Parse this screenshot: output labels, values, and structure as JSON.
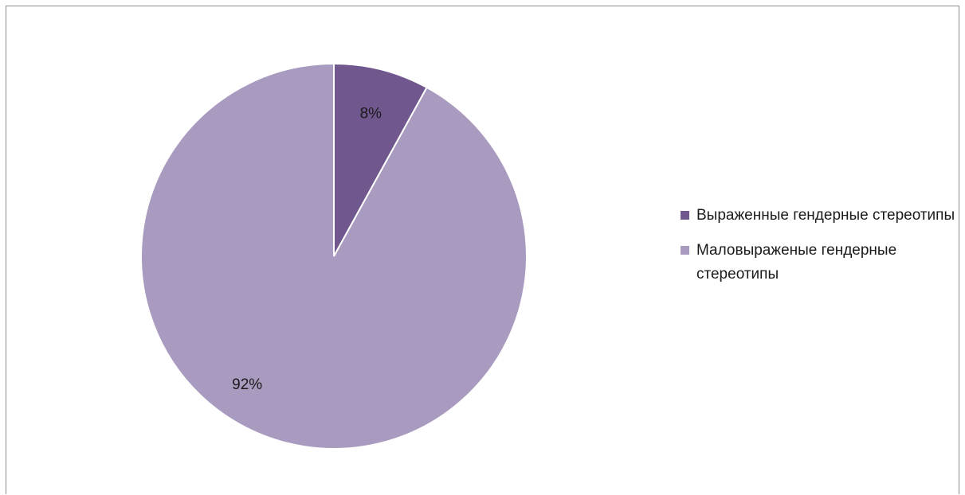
{
  "chart_data": {
    "type": "pie",
    "title": "",
    "slices": [
      {
        "label": "Выраженные гендерные стереотипы",
        "value": 8,
        "display": "8%",
        "color": "#70588f"
      },
      {
        "label": "Маловыраженые гендерные стереотипы",
        "value": 92,
        "display": "92%",
        "color": "#a99bbf"
      }
    ],
    "legend_position": "right"
  }
}
